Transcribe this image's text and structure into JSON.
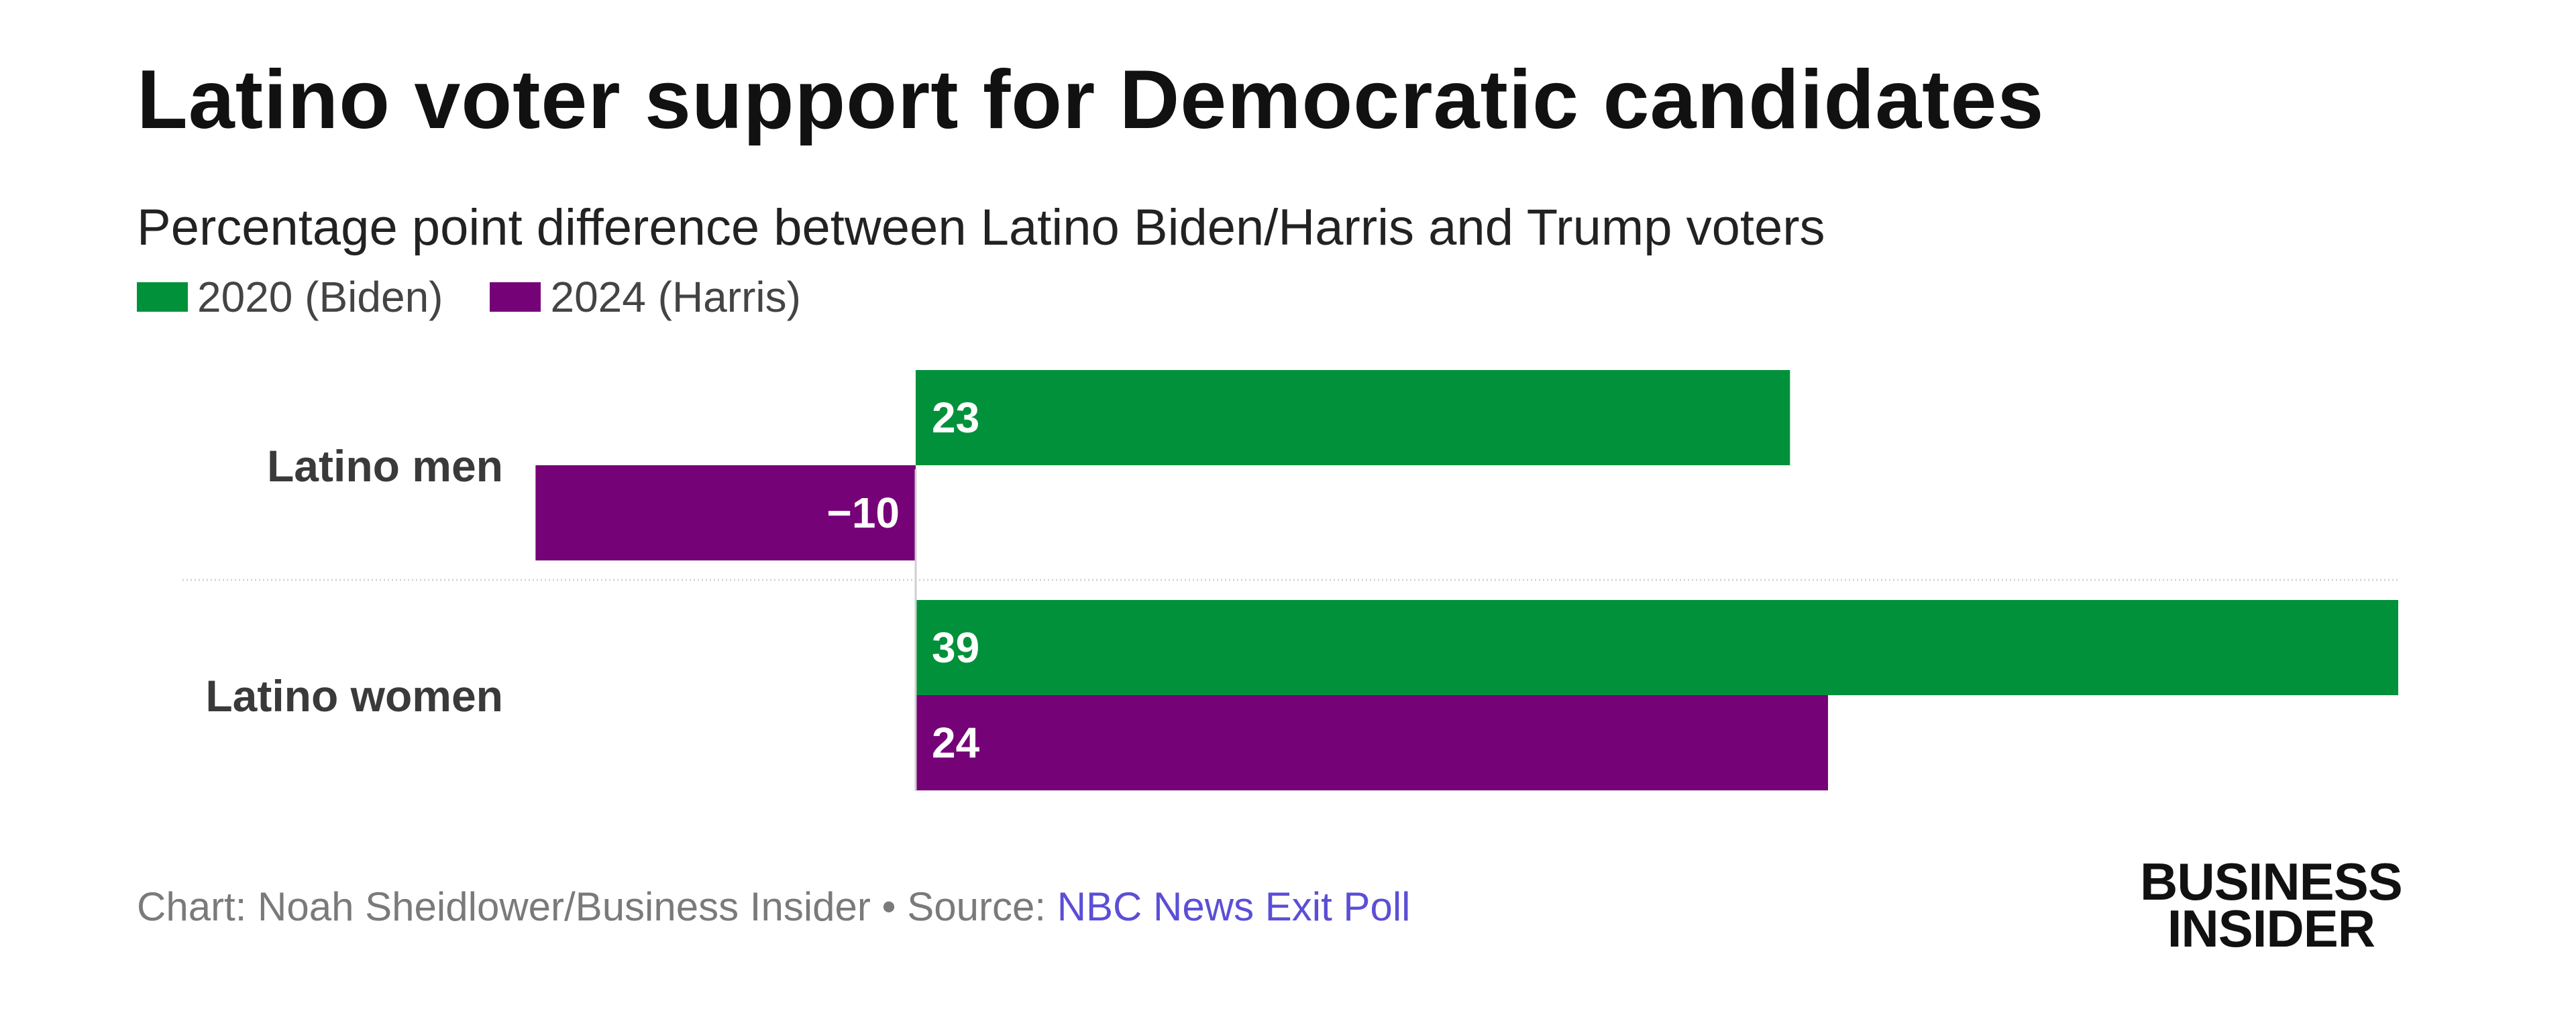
{
  "chart_data": {
    "type": "bar",
    "orientation": "horizontal",
    "title": "Latino voter support for Democratic candidates",
    "subtitle": "Percentage point difference between Latino Biden/Harris and Trump voters",
    "categories": [
      "Latino men",
      "Latino women"
    ],
    "series": [
      {
        "name": "2020 (Biden)",
        "color": "#00913a",
        "values": [
          23,
          39
        ],
        "labels": [
          "23",
          "39"
        ]
      },
      {
        "name": "2024 (Harris)",
        "color": "#760278",
        "values": [
          -10,
          24
        ],
        "labels": [
          "−10",
          "24"
        ]
      }
    ],
    "xlim": [
      -10,
      39
    ],
    "legend_position": "top-left",
    "grid": false
  },
  "footer": {
    "credit": "Chart: Noah Sheidlower/Business Insider • Source: ",
    "source_link": "NBC News Exit Poll"
  },
  "logo": {
    "line1": "BUSINESS",
    "line2": "INSIDER"
  }
}
